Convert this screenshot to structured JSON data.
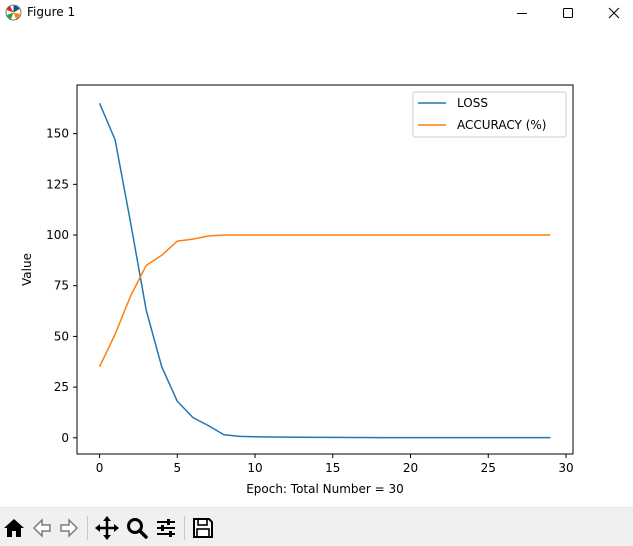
{
  "window": {
    "title": "Figure 1"
  },
  "toolbar": {
    "tools": [
      {
        "name": "home-icon",
        "tooltip": "Reset original view"
      },
      {
        "name": "back-icon",
        "tooltip": "Back to previous view"
      },
      {
        "name": "forward-icon",
        "tooltip": "Forward to next view"
      },
      {
        "name": "pan-icon",
        "tooltip": "Pan axes"
      },
      {
        "name": "zoom-icon",
        "tooltip": "Zoom to rectangle"
      },
      {
        "name": "configure-subplots-icon",
        "tooltip": "Configure subplots"
      },
      {
        "name": "save-icon",
        "tooltip": "Save the figure"
      }
    ]
  },
  "chart_data": {
    "type": "line",
    "title": "",
    "xlabel": "Epoch: Total Number = 30",
    "ylabel": "Value",
    "xlim": [
      -1.45,
      30.45
    ],
    "ylim": [
      -8,
      174
    ],
    "xticks": [
      0,
      5,
      10,
      15,
      20,
      25,
      30
    ],
    "yticks": [
      0,
      25,
      50,
      75,
      100,
      125,
      150
    ],
    "legend_position": "top-right",
    "grid": false,
    "x": [
      0,
      1,
      2,
      3,
      4,
      5,
      6,
      7,
      8,
      9,
      10,
      11,
      12,
      13,
      14,
      15,
      16,
      17,
      18,
      19,
      20,
      21,
      22,
      23,
      24,
      25,
      26,
      27,
      28,
      29
    ],
    "series": [
      {
        "name": "LOSS",
        "color": "#1f77b4",
        "values": [
          165,
          147,
          106,
          63,
          35,
          18,
          10,
          6,
          1.5,
          0.7,
          0.5,
          0.4,
          0.3,
          0.25,
          0.2,
          0.2,
          0.15,
          0.15,
          0.1,
          0.1,
          0.1,
          0.1,
          0.1,
          0.1,
          0.1,
          0.1,
          0.1,
          0.1,
          0.1,
          0.1
        ]
      },
      {
        "name": "ACCURACY (%)",
        "color": "#ff7f0e",
        "values": [
          35,
          51,
          70,
          85,
          90,
          97,
          98,
          99.5,
          100,
          100,
          100,
          100,
          100,
          100,
          100,
          100,
          100,
          100,
          100,
          100,
          100,
          100,
          100,
          100,
          100,
          100,
          100,
          100,
          100,
          100
        ]
      }
    ]
  }
}
